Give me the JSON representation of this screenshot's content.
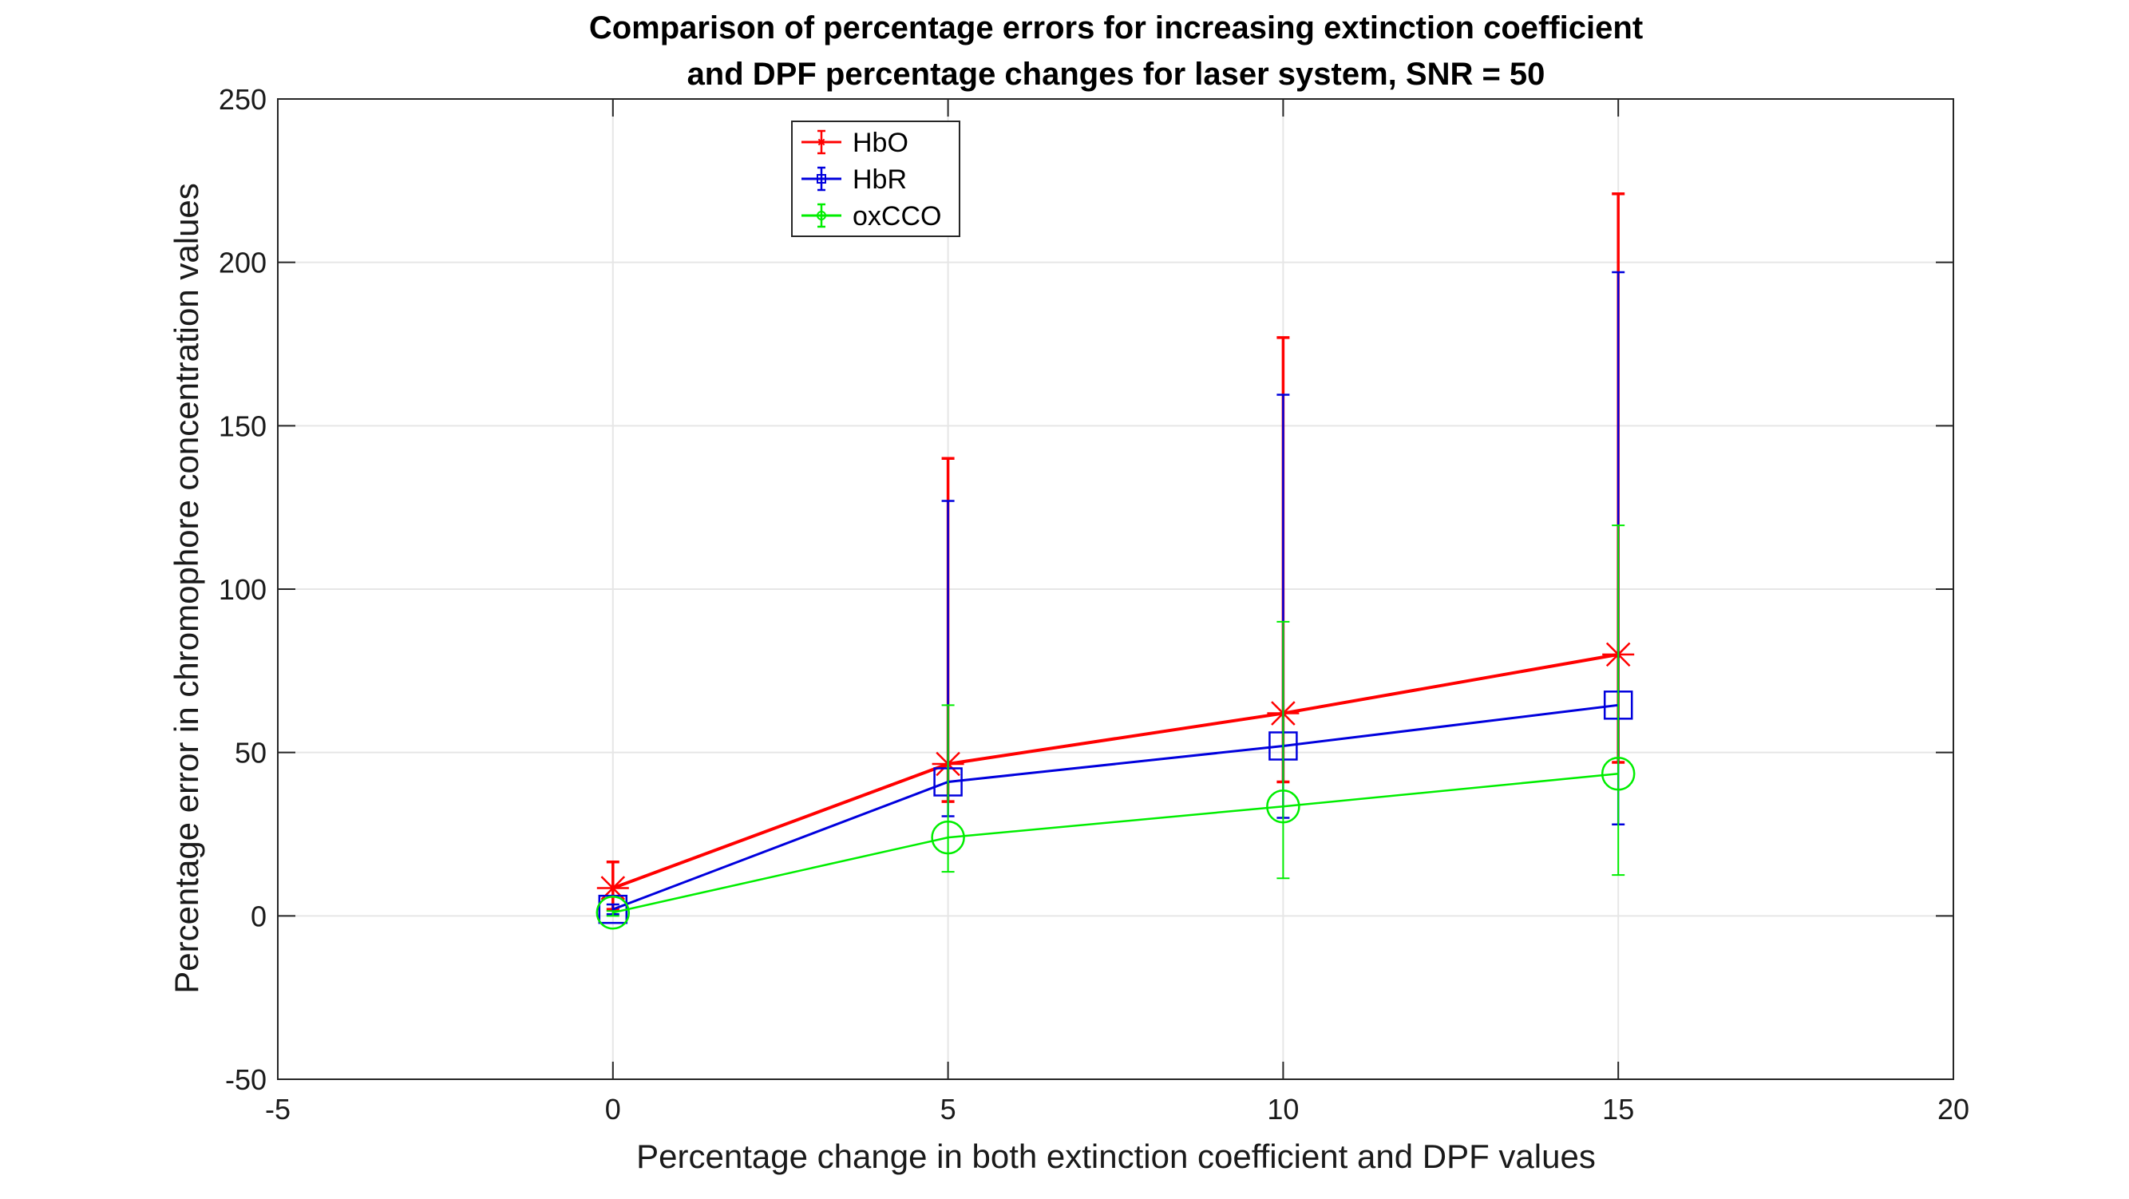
{
  "chart_data": {
    "type": "line",
    "title_lines": [
      "Comparison of percentage errors for increasing extinction coefficient",
      "and DPF percentage changes for laser system, SNR = 50"
    ],
    "xlabel": "Percentage change in both extinction coefficient and DPF values",
    "ylabel": "Percentage error in chromophore concentration values",
    "xlim": [
      -5,
      20
    ],
    "ylim": [
      -50,
      250
    ],
    "xticks": [
      -5,
      0,
      5,
      10,
      15,
      20
    ],
    "yticks": [
      -50,
      0,
      50,
      100,
      150,
      200,
      250
    ],
    "grid": true,
    "legend_position": "top-left-inside",
    "series": [
      {
        "name": "HbO",
        "color": "#ff0000",
        "marker": "asterisk",
        "x": [
          0,
          5,
          10,
          15
        ],
        "y": [
          8.5,
          46.5,
          62,
          80
        ],
        "err_low": [
          2,
          35,
          41,
          47
        ],
        "err_high": [
          16.5,
          140,
          177,
          221
        ]
      },
      {
        "name": "HbR",
        "color": "#0000dd",
        "marker": "square",
        "x": [
          0,
          5,
          10,
          15
        ],
        "y": [
          2,
          41,
          52,
          64.5
        ],
        "err_low": [
          0.5,
          30.5,
          30,
          28
        ],
        "err_high": [
          3.5,
          127,
          159.5,
          197
        ]
      },
      {
        "name": "oxCCO",
        "color": "#00ee00",
        "marker": "circle",
        "x": [
          0,
          5,
          10,
          15
        ],
        "y": [
          1,
          24,
          33.5,
          43.5
        ],
        "err_low": [
          0,
          13.5,
          11.5,
          12.5
        ],
        "err_high": [
          1.5,
          64.5,
          90,
          119.5
        ]
      }
    ]
  }
}
